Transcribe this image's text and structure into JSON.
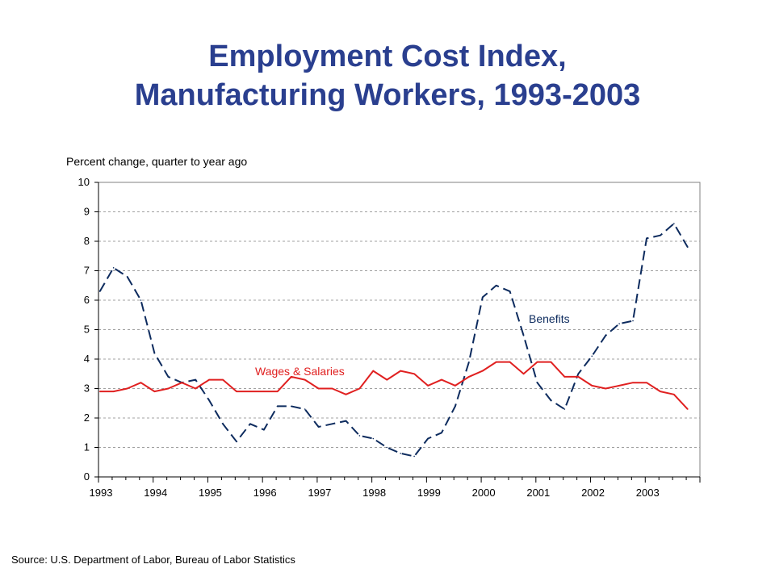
{
  "title_line1": "Employment Cost Index,",
  "title_line2": "Manufacturing Workers, 1993-2003",
  "source": "Source:  U.S. Department of Labor, Bureau of Labor Statistics",
  "chart_data": {
    "type": "line",
    "title": "Employment Cost Index, Manufacturing Workers, 1993-2003",
    "ylabel": "Percent change, quarter to year ago",
    "xlabel": "",
    "ylim": [
      0,
      10
    ],
    "yticks": [
      0,
      1,
      2,
      3,
      4,
      5,
      6,
      7,
      8,
      9,
      10
    ],
    "xticks": [
      "1993",
      "1994",
      "1995",
      "1996",
      "1997",
      "1998",
      "1999",
      "2000",
      "2001",
      "2002",
      "2003"
    ],
    "quarters_per_year": 4,
    "grid": true,
    "series": [
      {
        "name": "Benefits",
        "color": "#0d2b5e",
        "style": "dashed",
        "values": [
          6.3,
          7.1,
          6.8,
          6.0,
          4.2,
          3.4,
          3.2,
          3.3,
          2.6,
          1.8,
          1.2,
          1.8,
          1.6,
          2.4,
          2.4,
          2.3,
          1.7,
          1.8,
          1.9,
          1.4,
          1.3,
          1.0,
          0.8,
          0.7,
          1.3,
          1.5,
          2.4,
          3.9,
          6.1,
          6.5,
          6.3,
          4.8,
          3.2,
          2.6,
          2.3,
          3.5,
          4.1,
          4.8,
          5.2,
          5.3,
          8.1,
          8.2,
          8.6,
          7.8
        ]
      },
      {
        "name": "Wages & Salaries",
        "color": "#e02020",
        "style": "solid",
        "values": [
          2.9,
          2.9,
          3.0,
          3.2,
          2.9,
          3.0,
          3.2,
          3.0,
          3.3,
          3.3,
          2.9,
          2.9,
          2.9,
          2.9,
          3.4,
          3.3,
          3.0,
          3.0,
          2.8,
          3.0,
          3.6,
          3.3,
          3.6,
          3.5,
          3.1,
          3.3,
          3.1,
          3.4,
          3.6,
          3.9,
          3.9,
          3.5,
          3.9,
          3.9,
          3.4,
          3.4,
          3.1,
          3.0,
          3.1,
          3.2,
          3.2,
          2.9,
          2.8,
          2.3
        ]
      }
    ],
    "annotations": [
      {
        "text": "Benefits",
        "series": "Benefits"
      },
      {
        "text": "Wages & Salaries",
        "series": "Wages & Salaries"
      }
    ]
  }
}
